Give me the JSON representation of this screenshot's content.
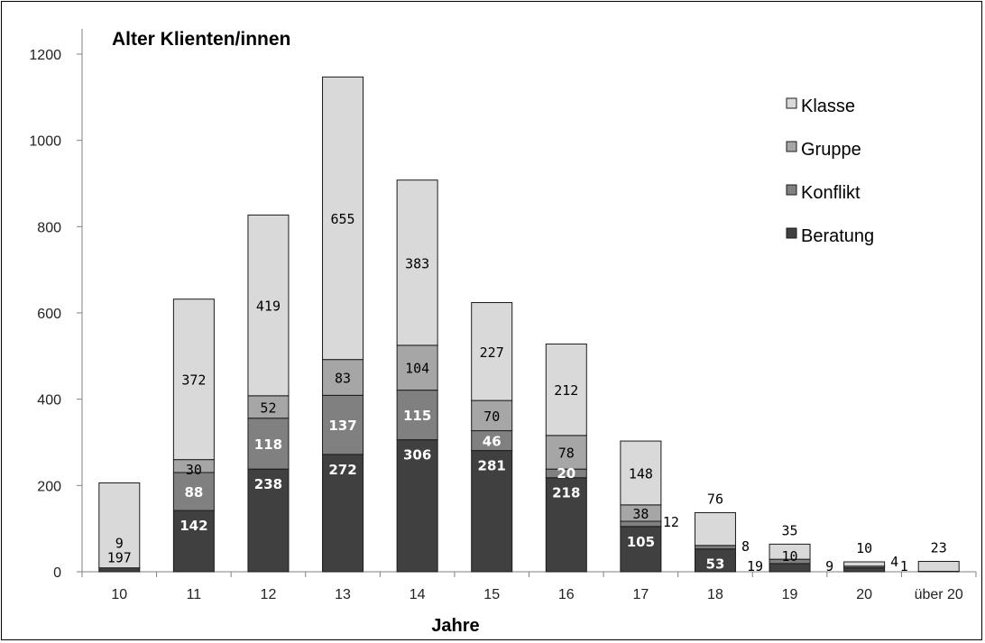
{
  "chart_data": {
    "type": "bar",
    "stacked": true,
    "title": "Alter Klienten/innen",
    "xlabel": "Jahre",
    "ylabel": "",
    "ylim": [
      0,
      1200
    ],
    "yticks": [
      "0",
      "200",
      "400",
      "600",
      "800",
      "1000",
      "1200"
    ],
    "categories": [
      "10",
      "11",
      "12",
      "13",
      "14",
      "15",
      "16",
      "17",
      "18",
      "19",
      "20",
      "über 20"
    ],
    "series": [
      {
        "name": "Beratung",
        "color": "#404040",
        "values": [
          9,
          142,
          238,
          272,
          306,
          281,
          218,
          105,
          53,
          19,
          9,
          1
        ],
        "labels": [
          "9",
          "142",
          "238",
          "272",
          "306",
          "281",
          "218",
          "105",
          "53",
          "19",
          "9",
          "1"
        ]
      },
      {
        "name": "Konflikt",
        "color": "#808080",
        "values": [
          0,
          88,
          118,
          137,
          115,
          46,
          20,
          12,
          8,
          10,
          4,
          0
        ],
        "labels": [
          "",
          "88",
          "118",
          "137",
          "115",
          "46",
          "20",
          "12",
          "8",
          "10",
          "4",
          ""
        ]
      },
      {
        "name": "Gruppe",
        "color": "#a6a6a6",
        "values": [
          0,
          30,
          52,
          83,
          104,
          70,
          78,
          38,
          0,
          0,
          0,
          0
        ],
        "labels": [
          "",
          "30",
          "52",
          "83",
          "104",
          "70",
          "78",
          "38",
          "",
          "",
          "",
          ""
        ]
      },
      {
        "name": "Klasse",
        "color": "#d9d9d9",
        "values": [
          197,
          372,
          419,
          655,
          383,
          227,
          212,
          148,
          76,
          35,
          10,
          23
        ],
        "labels": [
          "197",
          "372",
          "419",
          "655",
          "383",
          "227",
          "212",
          "148",
          "76",
          "35",
          "10",
          "23"
        ]
      }
    ],
    "legend": [
      "Klasse",
      "Gruppe",
      "Konflikt",
      "Beratung"
    ],
    "legend_position": "right",
    "grid": false
  }
}
